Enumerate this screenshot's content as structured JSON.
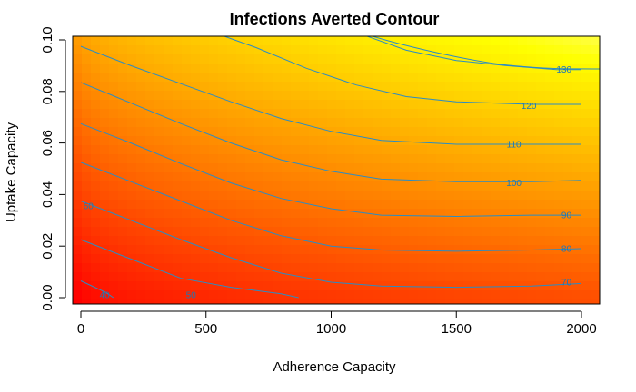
{
  "chart_data": {
    "type": "heatmap",
    "title": "Infections Averted Contour",
    "xlabel": "Adherence Capacity",
    "ylabel": "Uptake Capacity",
    "x_ticks": [
      "0",
      "500",
      "1000",
      "1500",
      "2000"
    ],
    "y_ticks": [
      "0.00",
      "0.02",
      "0.04",
      "0.06",
      "0.08",
      "0.10"
    ],
    "xlim": [
      0,
      2050
    ],
    "ylim": [
      0,
      0.103
    ],
    "color_scale": [
      "#ff0000",
      "#ff8000",
      "#ffff00",
      "#ffffff"
    ],
    "contours": [
      {
        "level": "40",
        "points": [
          [
            0,
            0.0065
          ],
          [
            100,
            0.002
          ],
          [
            130,
            0
          ]
        ]
      },
      {
        "level": "50",
        "points": [
          [
            0,
            0.0225
          ],
          [
            200,
            0.015
          ],
          [
            400,
            0.0075
          ],
          [
            600,
            0.004
          ],
          [
            800,
            0.0015
          ],
          [
            870,
            0
          ]
        ]
      },
      {
        "level": "60",
        "points": [
          [
            0,
            0.0375
          ],
          [
            200,
            0.03
          ],
          [
            400,
            0.0225
          ],
          [
            600,
            0.0155
          ],
          [
            800,
            0.0095
          ],
          [
            1000,
            0.006
          ],
          [
            1200,
            0.0045
          ],
          [
            1500,
            0.004
          ],
          [
            1800,
            0.0045
          ],
          [
            2000,
            0.0055
          ]
        ]
      },
      {
        "level": "70",
        "points": [
          [
            0,
            0.0525
          ],
          [
            200,
            0.045
          ],
          [
            400,
            0.0375
          ],
          [
            600,
            0.03
          ],
          [
            800,
            0.024
          ],
          [
            1000,
            0.02
          ],
          [
            1200,
            0.0185
          ],
          [
            1500,
            0.018
          ],
          [
            1800,
            0.0185
          ],
          [
            2000,
            0.019
          ]
        ]
      },
      {
        "level": "80",
        "points": [
          [
            0,
            0.0675
          ],
          [
            200,
            0.06
          ],
          [
            400,
            0.052
          ],
          [
            600,
            0.0445
          ],
          [
            800,
            0.0385
          ],
          [
            1000,
            0.0345
          ],
          [
            1200,
            0.032
          ],
          [
            1500,
            0.0315
          ],
          [
            1800,
            0.032
          ],
          [
            2000,
            0.032
          ]
        ]
      },
      {
        "level": "90",
        "points": [
          [
            0,
            0.0835
          ],
          [
            200,
            0.0755
          ],
          [
            400,
            0.0675
          ],
          [
            600,
            0.06
          ],
          [
            800,
            0.0535
          ],
          [
            1000,
            0.049
          ],
          [
            1200,
            0.046
          ],
          [
            1500,
            0.045
          ],
          [
            1800,
            0.045
          ],
          [
            2000,
            0.0455
          ]
        ]
      },
      {
        "level": "100",
        "points": [
          [
            0,
            0.0975
          ],
          [
            200,
            0.09
          ],
          [
            400,
            0.083
          ],
          [
            600,
            0.076
          ],
          [
            800,
            0.0695
          ],
          [
            1000,
            0.0645
          ],
          [
            1200,
            0.061
          ],
          [
            1500,
            0.0595
          ],
          [
            1800,
            0.0595
          ],
          [
            2000,
            0.0595
          ]
        ]
      },
      {
        "level": "110",
        "points": [
          [
            570,
            0.1015
          ],
          [
            700,
            0.097
          ],
          [
            900,
            0.089
          ],
          [
            1100,
            0.0825
          ],
          [
            1300,
            0.078
          ],
          [
            1500,
            0.076
          ],
          [
            1800,
            0.075
          ],
          [
            2000,
            0.075
          ]
        ]
      },
      {
        "level": "120",
        "points": [
          [
            1140,
            0.1015
          ],
          [
            1300,
            0.096
          ],
          [
            1500,
            0.092
          ],
          [
            1700,
            0.09
          ],
          [
            1900,
            0.0885
          ],
          [
            2000,
            0.0885
          ]
        ]
      },
      {
        "level": "130",
        "points": []
      }
    ],
    "contour_labels": [
      {
        "text": "40",
        "x": 95,
        "y": 0.001
      },
      {
        "text": "50",
        "x": 440,
        "y": 0.001
      },
      {
        "text": "60",
        "x": 30,
        "y": 0.0355
      },
      {
        "text": "70",
        "x": 1940,
        "y": 0.006
      },
      {
        "text": "80",
        "x": 1940,
        "y": 0.019
      },
      {
        "text": "90",
        "x": 1940,
        "y": 0.032
      },
      {
        "text": "100",
        "x": 1730,
        "y": 0.0445
      },
      {
        "text": "110",
        "x": 1730,
        "y": 0.0595
      },
      {
        "text": "120",
        "x": 1790,
        "y": 0.0745
      },
      {
        "text": "130",
        "x": 1930,
        "y": 0.0885
      }
    ]
  }
}
